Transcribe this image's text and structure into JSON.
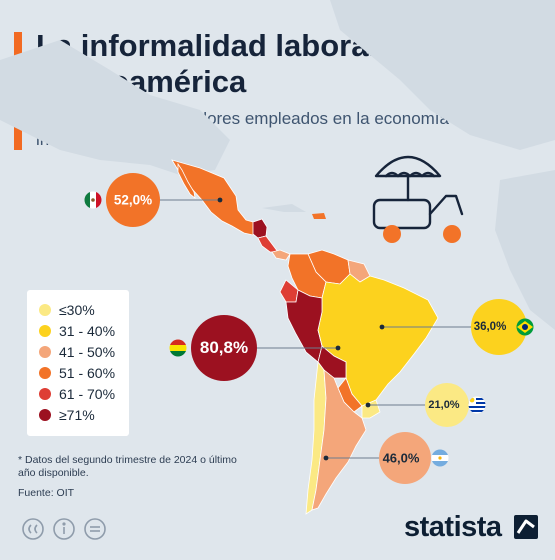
{
  "header": {
    "title": "La informalidad laboral en Latinoamérica",
    "subtitle": "Porcentaje de trabajadores empleados en la economía informal en 2024*",
    "accent_color": "#f26a22"
  },
  "legend": {
    "items": [
      {
        "label": "≤30%",
        "color": "#fbe984"
      },
      {
        "label": "31 - 40%",
        "color": "#fcd21e"
      },
      {
        "label": "41 - 50%",
        "color": "#f4a67a"
      },
      {
        "label": "51 - 60%",
        "color": "#f27328"
      },
      {
        "label": "61 - 70%",
        "color": "#de3e35"
      },
      {
        "label": "≥71%",
        "color": "#9c1120"
      }
    ]
  },
  "callouts": [
    {
      "id": "mexico",
      "country_flag": "mexico-flag-icon",
      "value": "52,0%",
      "color": "#f27328",
      "text_color": "#ffffff"
    },
    {
      "id": "bolivia",
      "country_flag": "bolivia-flag-icon",
      "value": "80,8%",
      "color": "#9c1120",
      "text_color": "#ffffff"
    },
    {
      "id": "brazil",
      "country_flag": "brazil-flag-icon",
      "value": "36,0%",
      "color": "#fcd21e",
      "text_color": "#1b2a3a"
    },
    {
      "id": "uruguay",
      "country_flag": "uruguay-flag-icon",
      "value": "21,0%",
      "color": "#fbe984",
      "text_color": "#1b2a3a"
    },
    {
      "id": "argentina",
      "country_flag": "argentina-flag-icon",
      "value": "46,0%",
      "color": "#f4a67a",
      "text_color": "#1b2a3a"
    }
  ],
  "footnote": "* Datos del segundo trimestre de 2024 o último año disponible.",
  "source": "Fuente: OIT",
  "brand": {
    "name": "statista",
    "icon": "statista-logo-icon"
  },
  "license_icons": [
    "creative-commons-icon",
    "attribution-icon",
    "no-derivatives-icon"
  ],
  "illustration": "ice-cream-cart-icon"
}
